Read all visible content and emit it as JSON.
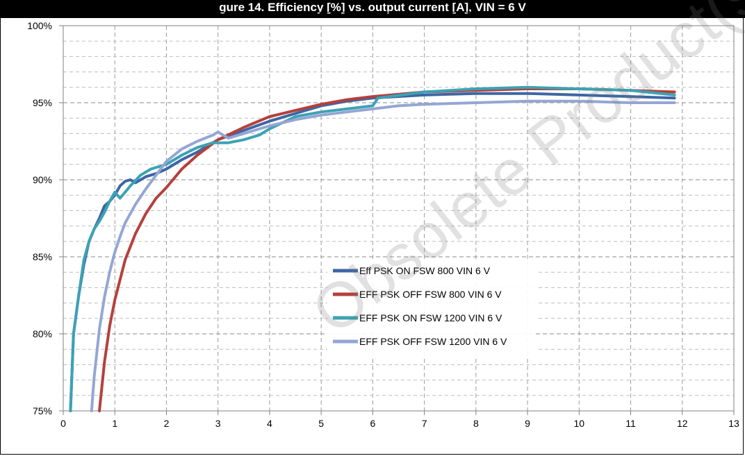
{
  "header": {
    "title": "gure 14. Efficiency [%] vs. output current [A], VIN = 6 V"
  },
  "watermark": "Obsolete Product(s)",
  "chart_data": {
    "type": "line",
    "title": "",
    "xlabel": "",
    "ylabel": "",
    "xlim": [
      0,
      13
    ],
    "ylim": [
      75,
      100
    ],
    "x_ticks": [
      "0",
      "1",
      "2",
      "3",
      "4",
      "5",
      "6",
      "7",
      "8",
      "9",
      "10",
      "11",
      "12",
      "13"
    ],
    "y_ticks": [
      "75%",
      "80%",
      "85%",
      "90%",
      "95%",
      "100%"
    ],
    "grid": true,
    "legend_position": "center",
    "series": [
      {
        "name": "Eff PSK ON FSW 800 VIN 6 V",
        "color": "#3d66a4",
        "x": [
          0.14,
          0.2,
          0.3,
          0.4,
          0.5,
          0.6,
          0.7,
          0.8,
          0.9,
          1.0,
          1.1,
          1.2,
          1.3,
          1.4,
          1.6,
          1.8,
          2.0,
          2.3,
          2.6,
          3.0,
          3.5,
          4.0,
          4.5,
          5.0,
          5.5,
          6.0,
          7.0,
          8.0,
          9.0,
          10.0,
          11.0,
          11.85
        ],
        "y": [
          75,
          80,
          82.5,
          84.5,
          86.0,
          86.8,
          87.5,
          88.3,
          88.6,
          89.0,
          89.6,
          89.9,
          90.0,
          89.8,
          90.2,
          90.4,
          90.7,
          91.3,
          91.8,
          92.6,
          93.2,
          93.8,
          94.3,
          94.8,
          95.1,
          95.3,
          95.5,
          95.6,
          95.6,
          95.5,
          95.4,
          95.3
        ]
      },
      {
        "name": "EFF PSK OFF FSW 800 VIN 6 V",
        "color": "#b5403c",
        "x": [
          0.7,
          0.8,
          0.9,
          1.0,
          1.1,
          1.2,
          1.4,
          1.6,
          1.8,
          2.0,
          2.3,
          2.6,
          3.0,
          3.5,
          4.0,
          4.5,
          5.0,
          5.5,
          6.0,
          7.0,
          8.0,
          9.0,
          10.0,
          11.0,
          11.85
        ],
        "y": [
          75,
          78.2,
          80.5,
          82.2,
          83.5,
          84.8,
          86.5,
          87.8,
          88.8,
          89.5,
          90.7,
          91.6,
          92.6,
          93.4,
          94.1,
          94.5,
          94.9,
          95.2,
          95.4,
          95.7,
          95.8,
          95.9,
          95.9,
          95.8,
          95.7
        ]
      },
      {
        "name": "EFF PSK ON FSW 1200 VIN 6 V",
        "color": "#3ca2b4",
        "x": [
          0.14,
          0.2,
          0.3,
          0.4,
          0.5,
          0.6,
          0.7,
          0.8,
          0.9,
          1.0,
          1.1,
          1.2,
          1.3,
          1.5,
          1.7,
          2.0,
          2.3,
          2.6,
          2.9,
          3.0,
          3.2,
          3.5,
          3.8,
          4.0,
          4.5,
          5.0,
          5.5,
          6.0,
          6.1,
          7.0,
          8.0,
          9.0,
          10.0,
          11.0,
          11.85
        ],
        "y": [
          75,
          80,
          82.5,
          84.8,
          86.0,
          86.8,
          87.3,
          87.9,
          88.6,
          89.2,
          88.8,
          89.2,
          89.6,
          90.3,
          90.7,
          91.0,
          91.6,
          92.1,
          92.4,
          92.4,
          92.4,
          92.6,
          92.9,
          93.3,
          94.1,
          94.4,
          94.6,
          94.8,
          95.3,
          95.7,
          95.9,
          96.0,
          95.9,
          95.8,
          95.5
        ]
      },
      {
        "name": "EFF PSK OFF FSW 1200 VIN 6 V",
        "color": "#94a6d4",
        "x": [
          0.55,
          0.6,
          0.7,
          0.8,
          0.9,
          1.0,
          1.1,
          1.2,
          1.4,
          1.6,
          1.8,
          2.0,
          2.3,
          2.6,
          2.9,
          3.0,
          3.2,
          3.5,
          4.0,
          4.5,
          5.0,
          5.5,
          6.0,
          6.5,
          7.0,
          8.0,
          9.0,
          10.0,
          11.0,
          11.85
        ],
        "y": [
          75,
          77.2,
          80.3,
          82.4,
          84.0,
          85.3,
          86.3,
          87.2,
          88.4,
          89.4,
          90.3,
          91.2,
          92.0,
          92.5,
          92.9,
          93.1,
          92.7,
          93.0,
          93.5,
          93.9,
          94.2,
          94.4,
          94.6,
          94.8,
          94.9,
          95.0,
          95.1,
          95.1,
          95.0,
          95.0
        ]
      }
    ]
  }
}
